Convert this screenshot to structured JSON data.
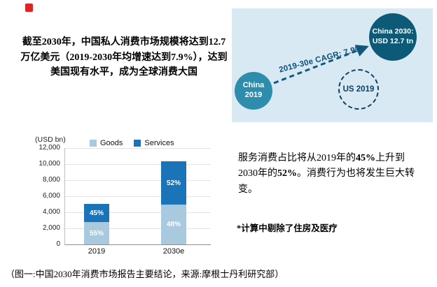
{
  "icons": {
    "red_logo": "red-square"
  },
  "intro": {
    "part1": "截至2030年，中国私人消费市场规模将达到",
    "bold1": "12.7万亿美元",
    "part2": "（2019-2030年均增速达到",
    "bold2": "7.9%",
    "part3": "），达到美国现有水平，成为全球消费大国"
  },
  "diagram": {
    "china2019_line1": "China",
    "china2019_line2": "2019",
    "china2030_line1": "China 2030:",
    "china2030_line2": "USD 12.7 tn",
    "us2019": "US 2019",
    "cagr_label": "2019-30e CAGR: 7.9%",
    "colors": {
      "panel_bg": "#d8e9f3",
      "china2019": "#2e8cac",
      "china2030": "#0d5a78",
      "us_outline": "#0c3f63",
      "arrow": "#15587d"
    }
  },
  "chart_data": {
    "type": "bar",
    "stacked": true,
    "title": "",
    "ylabel": "(USD bn)",
    "categories": [
      "2019",
      "2030e"
    ],
    "series": [
      {
        "name": "Goods",
        "color": "#a9c9de",
        "values": [
          2800,
          4950
        ],
        "labels": [
          "55%",
          "48%"
        ]
      },
      {
        "name": "Services",
        "color": "#1b74b8",
        "values": [
          2300,
          5350
        ],
        "labels": [
          "45%",
          "52%"
        ]
      }
    ],
    "totals": [
      5100,
      10300
    ],
    "ylim": [
      0,
      12000
    ],
    "ytick_step": 2000,
    "yticks": [
      "0",
      "2,000",
      "4,000",
      "6,000",
      "8,000",
      "10,000",
      "12,000"
    ],
    "legend_position": "top",
    "grid": true
  },
  "services_text": {
    "part1": "服务消费占比将从2019年的",
    "bold1": "45%",
    "part2": "上升到2030年的",
    "bold2": "52%",
    "part3": "。消费行为也将发生巨大转变。"
  },
  "footnote": "*计算中剔除了住房及医疗",
  "page": {
    "caption": "（图一:中国2030年消费市场报告主要结论，来源:摩根士丹利研究部）"
  }
}
